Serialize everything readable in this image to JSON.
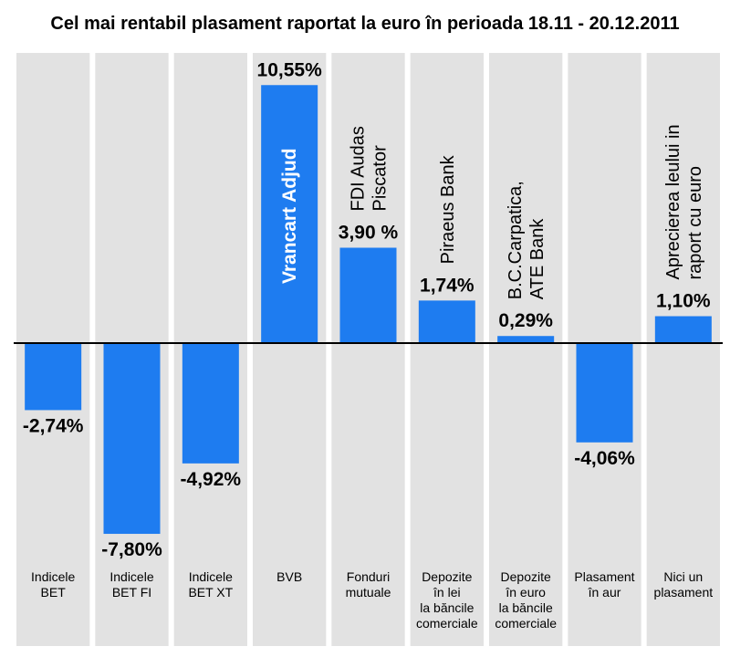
{
  "chart_data": {
    "type": "bar",
    "title": "Cel mai rentabil plasament raportat la euro în perioada 18.11 - 20.12.2011",
    "xlabel": "",
    "ylabel": "",
    "ylim": [
      -8.5,
      11
    ],
    "grid": false,
    "categories": [
      [
        "Indicele",
        "BET"
      ],
      [
        "Indicele",
        "BET FI"
      ],
      [
        "Indicele",
        "BET XT"
      ],
      [
        "BVB"
      ],
      [
        "Fonduri",
        "mutuale"
      ],
      [
        "Depozite",
        "în lei",
        "la băncile",
        "comerciale"
      ],
      [
        "Depozite",
        "în euro",
        "la băncile",
        "comerciale"
      ],
      [
        "Plasament",
        "în aur"
      ],
      [
        "Nici un",
        "plasament"
      ]
    ],
    "values": [
      -2.74,
      -7.8,
      -4.92,
      10.55,
      3.9,
      1.74,
      0.29,
      -4.06,
      1.1
    ],
    "value_labels": [
      "-2,74%",
      "-7,80%",
      "-4,92%",
      "10,55%",
      "3,90 %",
      "1,74%",
      "0,29%",
      "-4,06%",
      "1,10%"
    ],
    "annotations": [
      {
        "category_index": 3,
        "lines": [
          "Vrancart Adjud"
        ],
        "inside_bar": true
      },
      {
        "category_index": 4,
        "lines": [
          "FDI Audas",
          "Piscator"
        ],
        "inside_bar": false
      },
      {
        "category_index": 5,
        "lines": [
          "Piraeus Bank"
        ],
        "inside_bar": false
      },
      {
        "category_index": 6,
        "lines": [
          "B.C.Carpatica,",
          "ATE Bank"
        ],
        "inside_bar": false
      },
      {
        "category_index": 8,
        "lines": [
          "Aprecierea leului in",
          "raport cu euro"
        ],
        "inside_bar": false
      }
    ],
    "colors": {
      "bar": "#1e7cf0",
      "panel": "#e2e2e2",
      "background": "#ffffff",
      "axis": "#000000"
    }
  }
}
